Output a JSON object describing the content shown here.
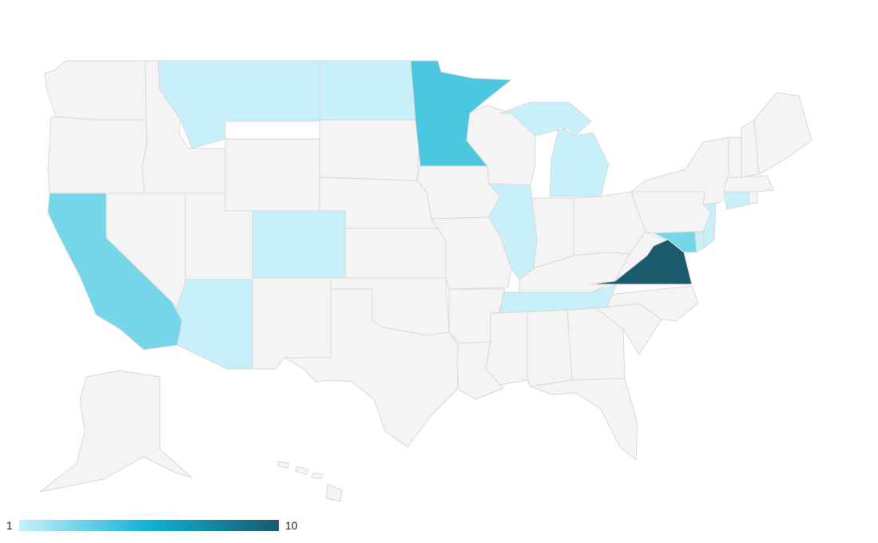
{
  "colors": {
    "background": "#ffffff",
    "no_data": "#f4f4f4",
    "border": "#d9d9d9",
    "scale_low": "#c8f0fa",
    "scale_mid": "#0eb3d3",
    "scale_high": "#1a5a6c"
  },
  "legend": {
    "min_label": "1",
    "max_label": "10"
  },
  "map_data": {
    "type": "choropleth",
    "region": "United States",
    "scale": {
      "min": 1,
      "max": 10
    },
    "states": [
      {
        "code": "WA",
        "value": null
      },
      {
        "code": "OR",
        "value": null
      },
      {
        "code": "CA",
        "value": 3
      },
      {
        "code": "NV",
        "value": null
      },
      {
        "code": "ID",
        "value": null
      },
      {
        "code": "MT",
        "value": 1
      },
      {
        "code": "WY",
        "value": null
      },
      {
        "code": "UT",
        "value": null
      },
      {
        "code": "AZ",
        "value": 1
      },
      {
        "code": "CO",
        "value": 1
      },
      {
        "code": "NM",
        "value": null
      },
      {
        "code": "ND",
        "value": 1
      },
      {
        "code": "SD",
        "value": null
      },
      {
        "code": "NE",
        "value": null
      },
      {
        "code": "KS",
        "value": null
      },
      {
        "code": "OK",
        "value": null
      },
      {
        "code": "TX",
        "value": null
      },
      {
        "code": "MN",
        "value": 4
      },
      {
        "code": "IA",
        "value": null
      },
      {
        "code": "MO",
        "value": null
      },
      {
        "code": "AR",
        "value": null
      },
      {
        "code": "LA",
        "value": null
      },
      {
        "code": "WI",
        "value": null
      },
      {
        "code": "IL",
        "value": 1
      },
      {
        "code": "MI",
        "value": 1
      },
      {
        "code": "IN",
        "value": null
      },
      {
        "code": "OH",
        "value": null
      },
      {
        "code": "KY",
        "value": null
      },
      {
        "code": "TN",
        "value": 1
      },
      {
        "code": "MS",
        "value": null
      },
      {
        "code": "AL",
        "value": null
      },
      {
        "code": "GA",
        "value": null
      },
      {
        "code": "FL",
        "value": null
      },
      {
        "code": "SC",
        "value": null
      },
      {
        "code": "NC",
        "value": null
      },
      {
        "code": "VA",
        "value": 10
      },
      {
        "code": "WV",
        "value": null
      },
      {
        "code": "MD",
        "value": 3
      },
      {
        "code": "DE",
        "value": 1
      },
      {
        "code": "PA",
        "value": null
      },
      {
        "code": "NJ",
        "value": 1
      },
      {
        "code": "NY",
        "value": null
      },
      {
        "code": "CT",
        "value": 1
      },
      {
        "code": "RI",
        "value": null
      },
      {
        "code": "MA",
        "value": null
      },
      {
        "code": "VT",
        "value": null
      },
      {
        "code": "NH",
        "value": null
      },
      {
        "code": "ME",
        "value": null
      },
      {
        "code": "AK",
        "value": null
      },
      {
        "code": "HI",
        "value": null
      }
    ]
  }
}
